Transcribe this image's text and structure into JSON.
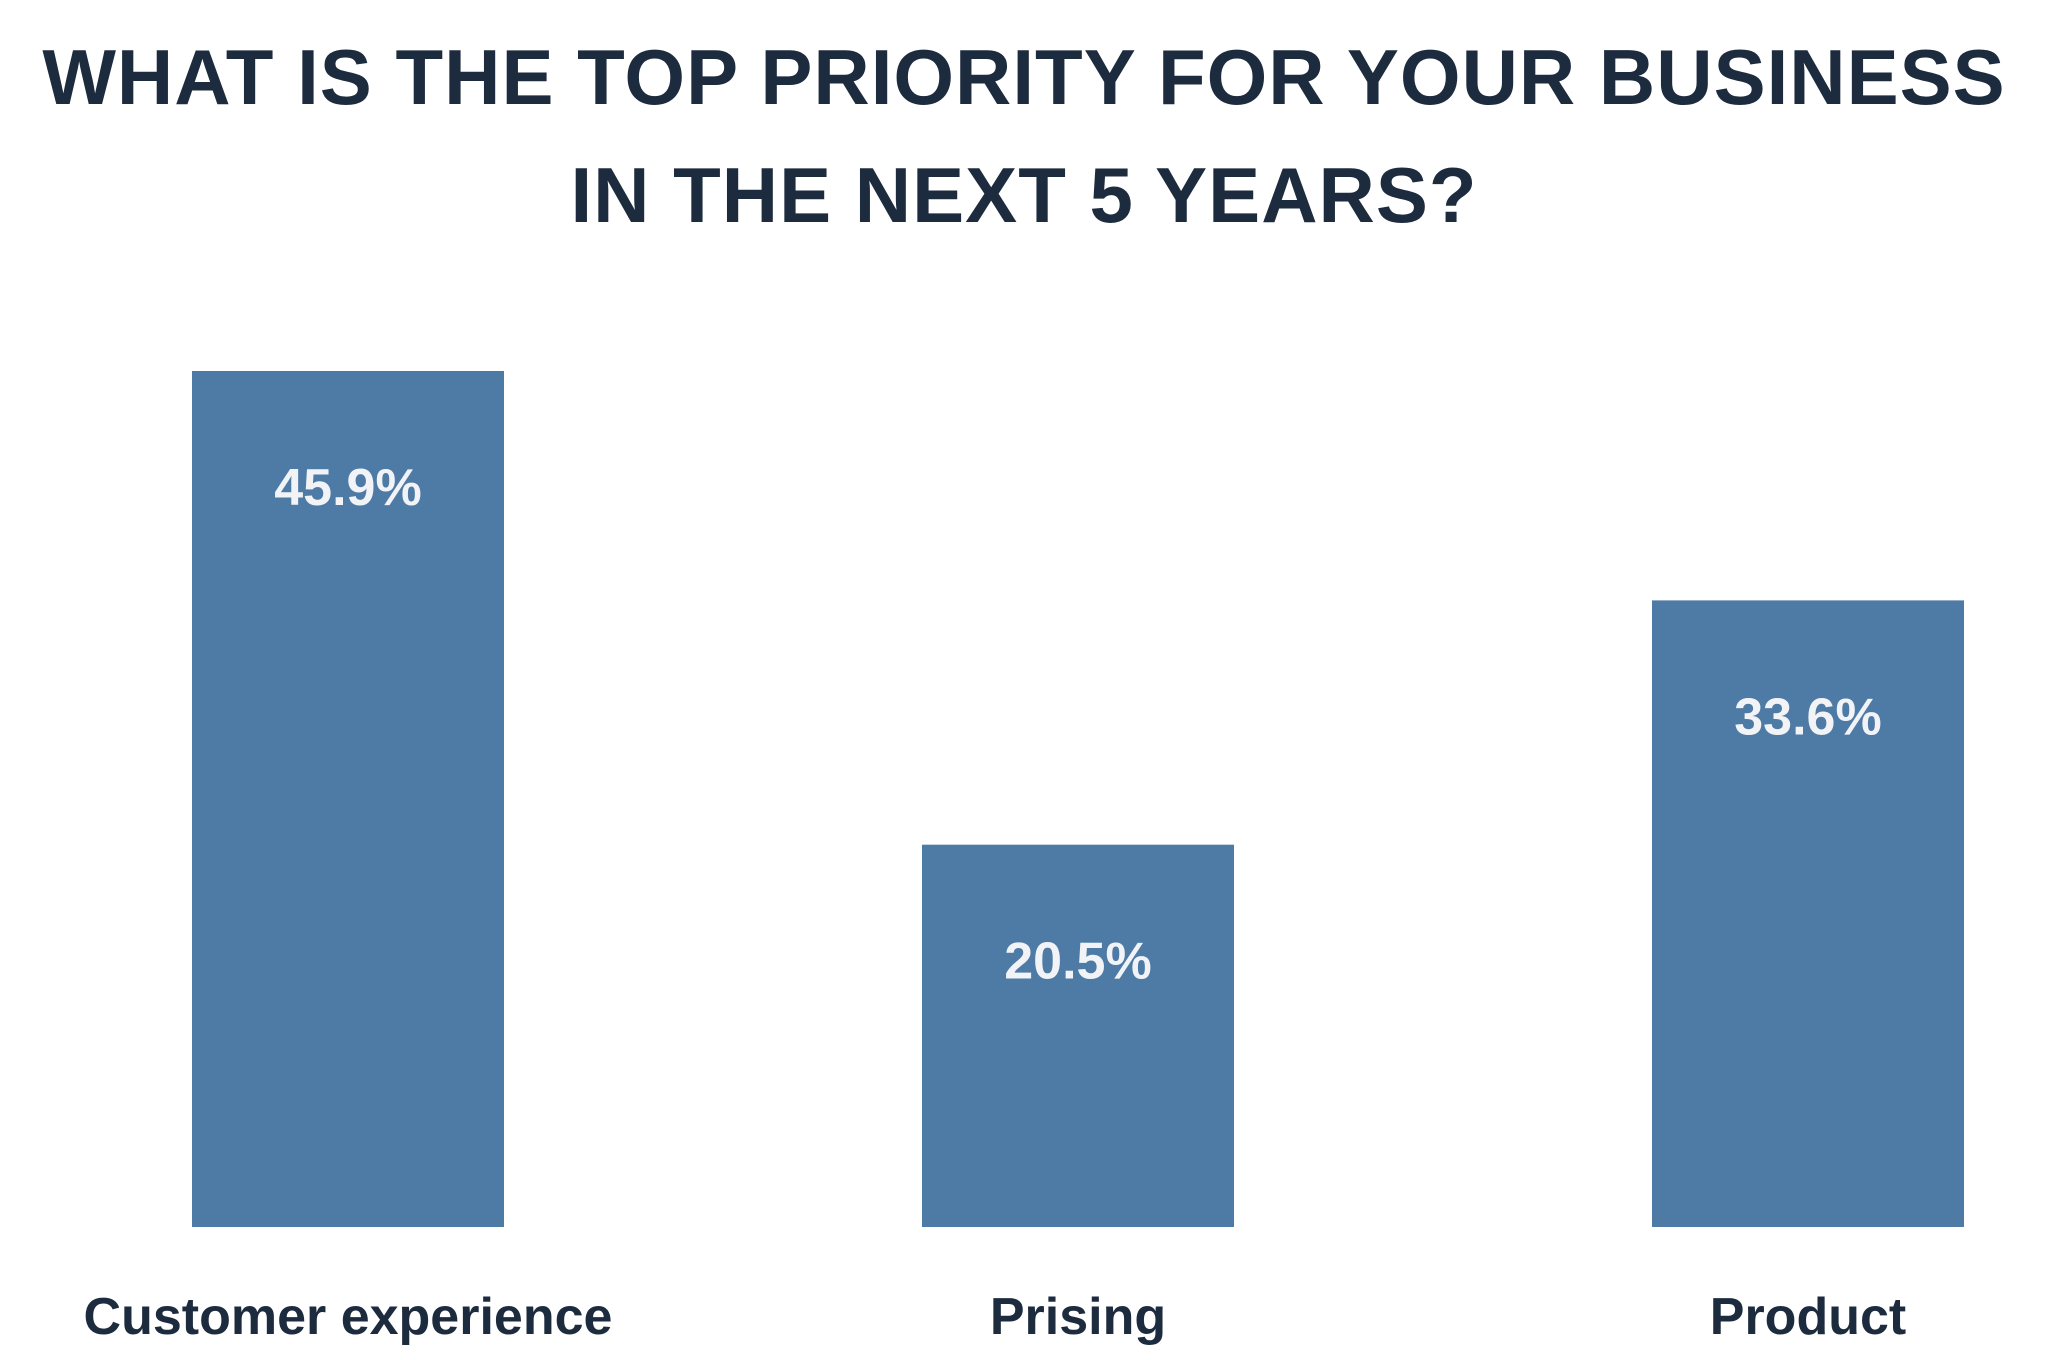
{
  "chart_data": {
    "type": "bar",
    "title_line1": "WHAT IS THE TOP PRIORITY FOR YOUR BUSINESS",
    "title_line2": "IN THE NEXT 5 YEARS?",
    "categories": [
      "Customer experience",
      "Prising",
      "Product"
    ],
    "values": [
      45.9,
      20.5,
      33.6
    ],
    "value_labels": [
      "45.9%",
      "20.5%",
      "33.6%"
    ],
    "ylim": [
      0,
      45.9
    ],
    "grid": false,
    "legend": "none",
    "bar_color": "#4d7ba6",
    "title_color": "#1d2b3e",
    "value_label_color": "#f1f3f6"
  }
}
